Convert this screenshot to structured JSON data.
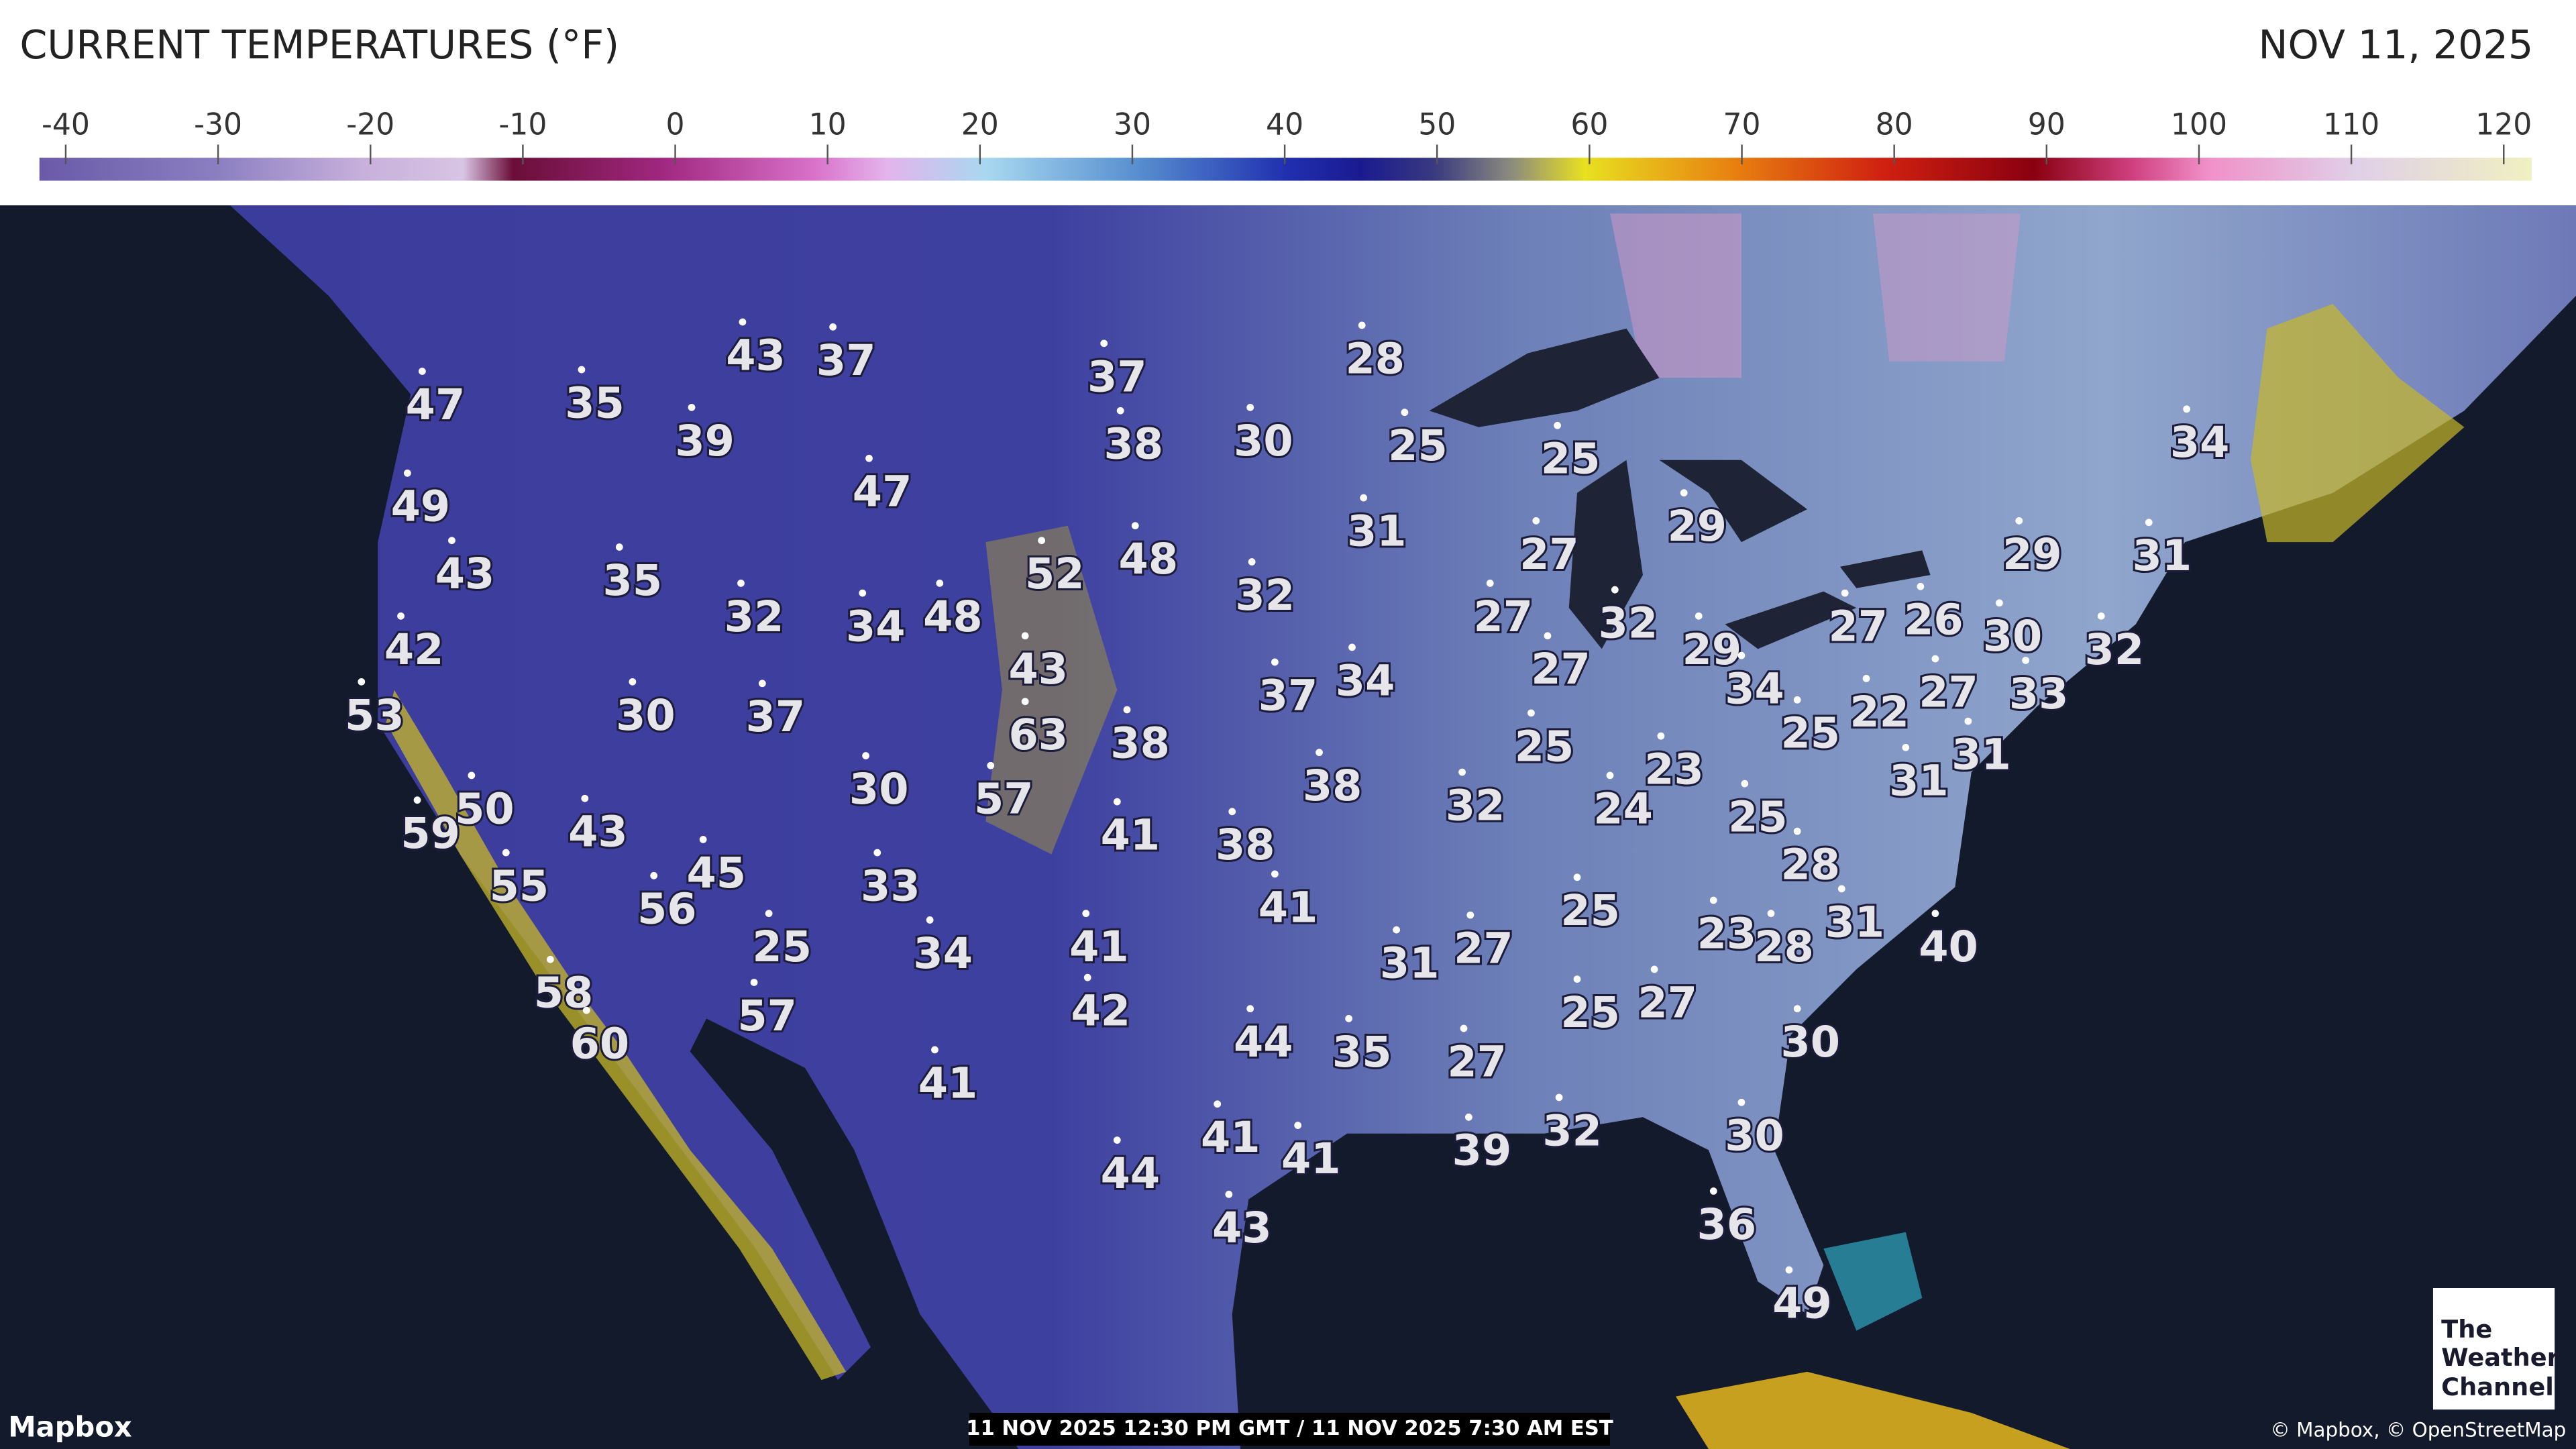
{
  "header": {
    "title": "CURRENT TEMPERATURES (°F)",
    "date": "NOV 11, 2025"
  },
  "legend": {
    "ticks": [
      -40,
      -30,
      -20,
      -10,
      0,
      10,
      20,
      30,
      40,
      50,
      60,
      70,
      80,
      90,
      100,
      110,
      120
    ]
  },
  "map": {
    "temperatures": [
      47,
      35,
      43,
      37,
      39,
      37,
      38,
      30,
      28,
      25,
      25,
      34,
      49,
      47,
      31,
      27,
      29,
      29,
      31,
      43,
      35,
      32,
      34,
      48,
      52,
      48,
      32,
      27,
      32,
      27,
      26,
      30,
      32,
      42,
      43,
      37,
      34,
      27,
      29,
      34,
      25,
      22,
      27,
      33,
      53,
      30,
      37,
      63,
      38,
      25,
      23,
      31,
      31,
      30,
      57,
      38,
      32,
      24,
      25,
      59,
      50,
      43,
      41,
      38,
      28,
      55,
      45,
      56,
      33,
      41,
      25,
      23,
      28,
      31,
      40,
      25,
      34,
      41,
      31,
      27,
      58,
      57,
      42,
      25,
      27,
      60,
      44,
      35,
      27,
      30,
      41,
      39,
      32,
      30,
      41,
      41,
      44,
      43,
      36,
      49
    ]
  },
  "footer": {
    "attribution_left": "Mapbox",
    "timestamp": "11 NOV 2025 12:30 PM GMT / 11 NOV 2025 7:30 AM EST",
    "attribution_right": "© Mapbox, © OpenStreetMap",
    "logo": [
      "The",
      "Weather",
      "Channel"
    ]
  }
}
